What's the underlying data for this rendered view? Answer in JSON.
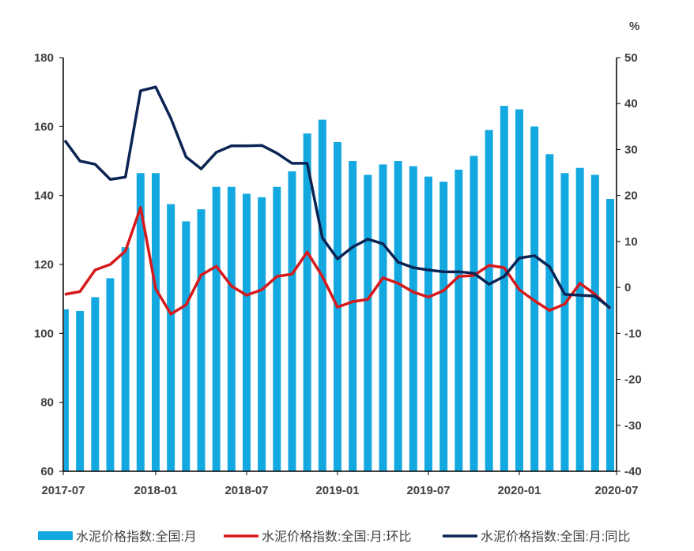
{
  "chart_data": {
    "type": "bar+line",
    "right_unit": "%",
    "categories": [
      "2017-07",
      "2017-08",
      "2017-09",
      "2017-10",
      "2017-11",
      "2017-12",
      "2018-01",
      "2018-02",
      "2018-03",
      "2018-04",
      "2018-05",
      "2018-06",
      "2018-07",
      "2018-08",
      "2018-09",
      "2018-10",
      "2018-11",
      "2018-12",
      "2019-01",
      "2019-02",
      "2019-03",
      "2019-04",
      "2019-05",
      "2019-06",
      "2019-07",
      "2019-08",
      "2019-09",
      "2019-10",
      "2019-11",
      "2019-12",
      "2020-01",
      "2020-02",
      "2020-03",
      "2020-04",
      "2020-05",
      "2020-06",
      "2020-07"
    ],
    "x_tick_labels": [
      "2017-07",
      "2018-01",
      "2018-07",
      "2019-01",
      "2019-07",
      "2020-01",
      "2020-07"
    ],
    "left_axis": {
      "ylim": [
        60,
        180
      ],
      "ticks": [
        60,
        80,
        100,
        120,
        140,
        160,
        180
      ]
    },
    "right_axis": {
      "ylim": [
        -40,
        50
      ],
      "ticks": [
        -40,
        -30,
        -20,
        -10,
        0,
        10,
        20,
        30,
        40,
        50
      ]
    },
    "grid": false,
    "legend_position": "bottom",
    "series": [
      {
        "name": "水泥价格指数:全国:月",
        "type": "bar",
        "axis": "left",
        "color": "#14a8e0",
        "values": [
          107,
          106.5,
          110.5,
          116,
          125,
          146.5,
          146.5,
          137.5,
          132.5,
          136,
          142.5,
          142.5,
          140.5,
          139.5,
          142.5,
          147,
          158,
          162,
          155.5,
          150,
          146,
          149,
          150,
          148.5,
          145.5,
          144,
          147.5,
          151.5,
          159,
          166,
          165,
          160,
          152,
          146.5,
          148,
          146,
          139
        ]
      },
      {
        "name": "水泥价格指数:全国:月:环比",
        "type": "line",
        "axis": "right",
        "color": "#d7191c",
        "values": [
          -1.5,
          -0.9,
          3.8,
          5,
          7.9,
          17.4,
          -0.3,
          -5.8,
          -3.8,
          2.7,
          4.6,
          0.3,
          -1.7,
          -0.5,
          2.4,
          2.9,
          7.7,
          2.4,
          -4.3,
          -3.1,
          -2.6,
          2.1,
          0.9,
          -1,
          -2.1,
          -0.7,
          2.4,
          2.6,
          4.8,
          4.3,
          -0.5,
          -2.9,
          -5,
          -3.6,
          0.9,
          -1.5,
          -4.6
        ]
      },
      {
        "name": "水泥价格指数:全国:月:同比",
        "type": "line",
        "axis": "right",
        "color": "#0c2454",
        "values": [
          32,
          27.5,
          26.8,
          23.5,
          24,
          42.8,
          43.6,
          36.8,
          28.4,
          25.8,
          29.4,
          30.8,
          30.8,
          30.9,
          29.2,
          27,
          27,
          10.8,
          6.2,
          8.8,
          10.5,
          9.5,
          5.5,
          4.3,
          3.8,
          3.4,
          3.4,
          3.1,
          0.7,
          2.4,
          6.4,
          6.9,
          4.5,
          -1.5,
          -1.7,
          -1.9,
          -4.5
        ]
      }
    ]
  }
}
